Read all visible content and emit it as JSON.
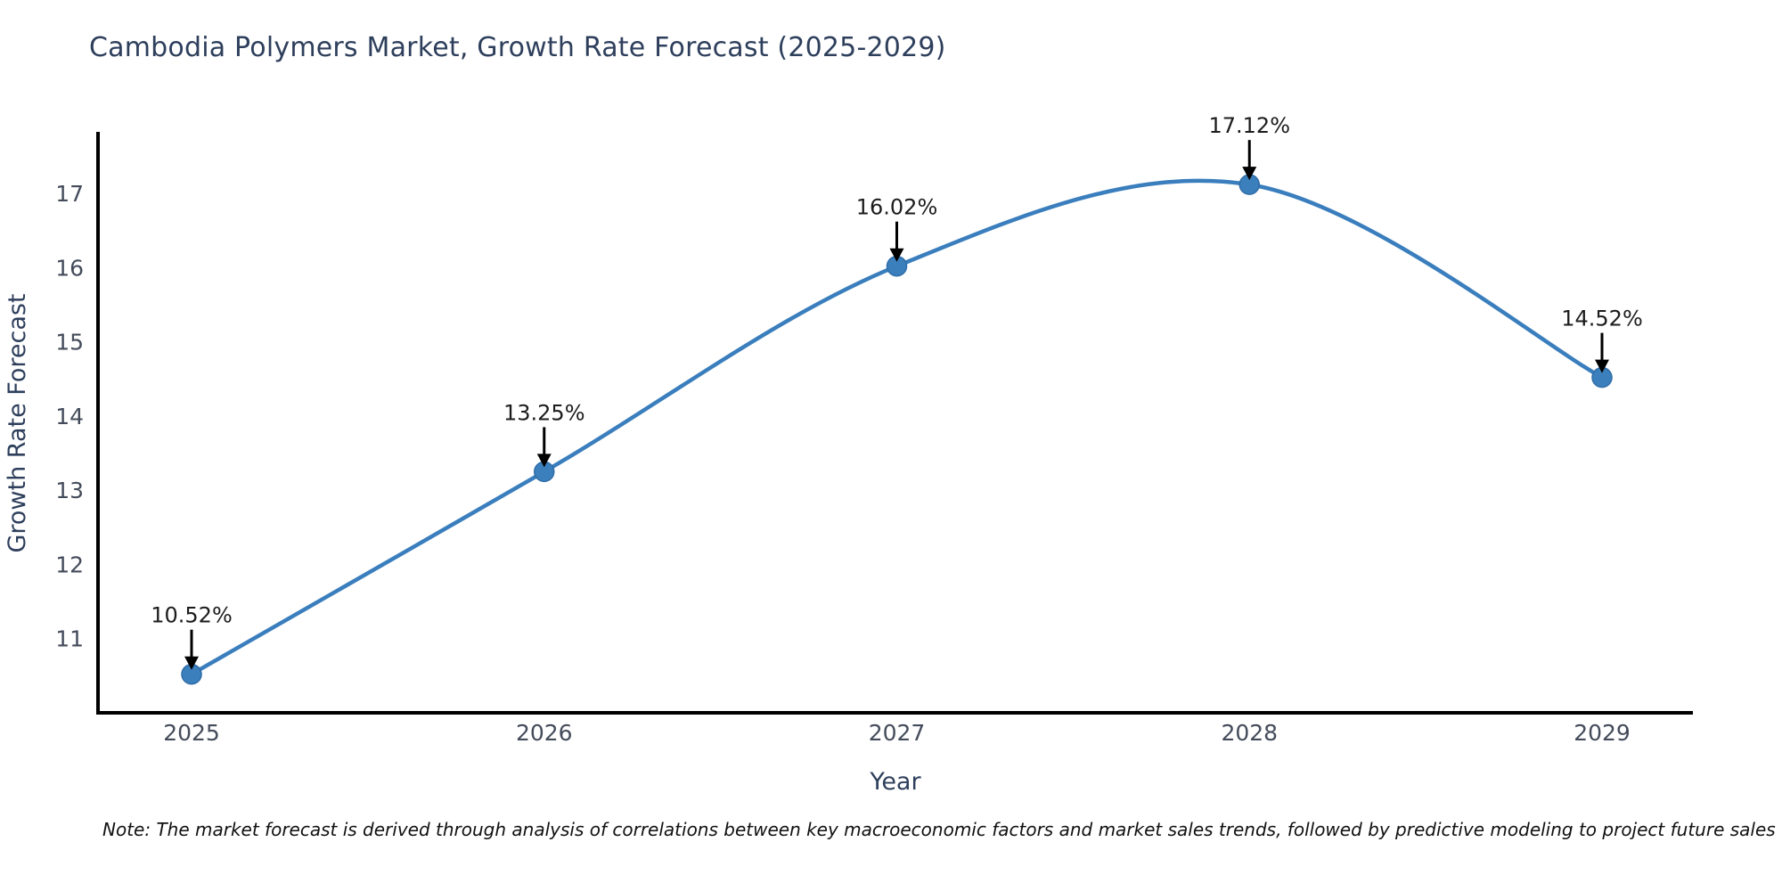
{
  "title": "Cambodia Polymers Market, Growth Rate Forecast (2025-2029)",
  "note": "Note: The market forecast is derived through analysis of correlations between key macroeconomic factors and market sales trends, followed by predictive modeling to project future sales",
  "chart_data": {
    "type": "line",
    "title": "Cambodia Polymers Market, Growth Rate Forecast (2025-2029)",
    "xlabel": "Year",
    "ylabel": "Growth Rate Forecast",
    "categories": [
      "2025",
      "2026",
      "2027",
      "2028",
      "2029"
    ],
    "values": [
      10.52,
      13.25,
      16.02,
      17.12,
      14.52
    ],
    "labels": [
      "10.52%",
      "13.25%",
      "16.02%",
      "17.12%",
      "14.52%"
    ],
    "yticks": [
      11,
      12,
      13,
      14,
      15,
      16,
      17
    ],
    "ylim": [
      10.0,
      17.83
    ],
    "grid": false,
    "legend": "none",
    "line_shape": "spline",
    "line_color": "#3a7ebd",
    "marker_color": "#3b7fbc",
    "marker_edge_color": "#2f6da8",
    "axis_line_color": "#000000",
    "tick_color": "#444b5a",
    "axis_title_color": "#2e3f5c",
    "annotation_text_color": "#1c1c1c",
    "annotation_arrow_color": "#000000",
    "title_color": "#2e3f5c"
  }
}
